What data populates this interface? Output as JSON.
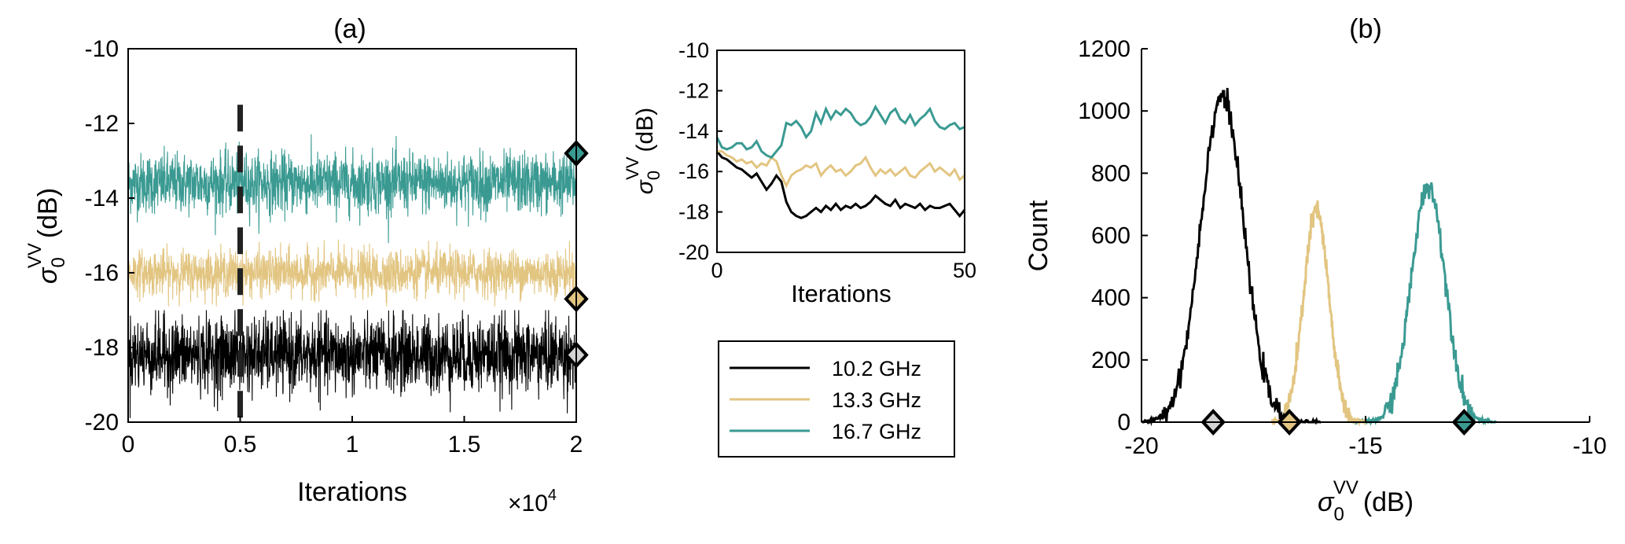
{
  "colors": {
    "f102": "#000000",
    "f133": "#E2C581",
    "f167": "#3A9A92",
    "marker102": "#D3D3D3",
    "axis": "#000000"
  },
  "chart_data": [
    {
      "panel": "(a)",
      "type": "line",
      "title": "(a)",
      "xlabel": "Iterations",
      "x_exponent_label": "×10",
      "x_exponent_power": "4",
      "ylabel": "σ₀ᵛᵛ (dB)",
      "xlim": [
        0,
        20000
      ],
      "ylim": [
        -20,
        -10
      ],
      "xticks": [
        0,
        5000,
        10000,
        15000,
        20000
      ],
      "xtick_labels": [
        "0",
        "0.5",
        "1",
        "1.5",
        "2"
      ],
      "yticks": [
        -10,
        -12,
        -14,
        -16,
        -18,
        -20
      ],
      "ytick_labels": [
        "-10",
        "-12",
        "-14",
        "-16",
        "-18",
        "-20"
      ],
      "vline_x": 5000,
      "vline_style": "dashed",
      "series": [
        {
          "name": "10.2 GHz",
          "mean": -18.2,
          "spread": 0.5,
          "min": -19.9,
          "max": -17.0,
          "color_key": "f102",
          "marker_value": -18.2
        },
        {
          "name": "13.3 GHz",
          "mean": -16.0,
          "spread": 0.3,
          "min": -16.9,
          "max": -15.1,
          "color_key": "f133",
          "marker_value": -16.7
        },
        {
          "name": "16.7 GHz",
          "mean": -13.6,
          "spread": 0.4,
          "min": -15.4,
          "max": -12.2,
          "color_key": "f167",
          "marker_value": -12.8
        }
      ]
    },
    {
      "panel": "inset",
      "type": "line",
      "xlabel": "Iterations",
      "ylabel": "σ₀ᵛᵛ (dB)",
      "xlim": [
        0,
        50
      ],
      "ylim": [
        -20,
        -10
      ],
      "xticks": [
        0,
        50
      ],
      "xtick_labels": [
        "0",
        "50"
      ],
      "yticks": [
        -10,
        -12,
        -14,
        -16,
        -18,
        -20
      ],
      "ytick_labels": [
        "-10",
        "-12",
        "-14",
        "-16",
        "-18",
        "-20"
      ],
      "x": [
        0,
        1,
        2,
        3,
        4,
        5,
        6,
        7,
        8,
        9,
        10,
        11,
        12,
        13,
        14,
        15,
        16,
        17,
        18,
        19,
        20,
        21,
        22,
        23,
        24,
        25,
        26,
        27,
        28,
        29,
        30,
        31,
        32,
        33,
        34,
        35,
        36,
        37,
        38,
        39,
        40,
        41,
        42,
        43,
        44,
        45,
        46,
        47,
        48,
        49,
        50
      ],
      "series": [
        {
          "name": "10.2 GHz",
          "color_key": "f102",
          "values": [
            -15.0,
            -15.3,
            -15.4,
            -15.6,
            -15.8,
            -15.9,
            -16.1,
            -16.3,
            -16.1,
            -16.5,
            -16.9,
            -16.6,
            -16.2,
            -16.5,
            -17.5,
            -18.0,
            -18.2,
            -18.3,
            -18.2,
            -18.0,
            -17.8,
            -18.0,
            -17.7,
            -17.9,
            -17.6,
            -17.9,
            -17.7,
            -17.8,
            -17.6,
            -17.8,
            -17.7,
            -17.5,
            -17.2,
            -17.4,
            -17.6,
            -17.7,
            -17.4,
            -17.8,
            -17.6,
            -17.7,
            -17.8,
            -17.6,
            -17.9,
            -17.7,
            -17.8,
            -17.8,
            -17.7,
            -17.6,
            -17.9,
            -18.2,
            -17.9
          ]
        },
        {
          "name": "13.3 GHz",
          "color_key": "f133",
          "values": [
            -15.0,
            -15.0,
            -15.2,
            -15.3,
            -15.5,
            -15.4,
            -15.6,
            -15.5,
            -15.8,
            -15.6,
            -15.7,
            -15.3,
            -15.5,
            -16.2,
            -16.7,
            -16.2,
            -16.0,
            -15.9,
            -15.7,
            -15.8,
            -15.6,
            -16.2,
            -15.9,
            -15.7,
            -16.0,
            -15.9,
            -16.2,
            -16.0,
            -15.7,
            -15.6,
            -15.3,
            -15.8,
            -16.2,
            -15.9,
            -16.1,
            -15.9,
            -16.2,
            -16.0,
            -15.8,
            -16.2,
            -16.3,
            -16.0,
            -15.8,
            -15.6,
            -16.0,
            -15.8,
            -16.0,
            -16.2,
            -15.9,
            -16.4,
            -16.2
          ]
        },
        {
          "name": "16.7 GHz",
          "color_key": "f167",
          "values": [
            -14.3,
            -14.8,
            -14.9,
            -14.8,
            -14.6,
            -14.6,
            -14.9,
            -14.8,
            -14.5,
            -15.0,
            -15.2,
            -15.3,
            -15.0,
            -14.7,
            -13.6,
            -13.7,
            -13.5,
            -13.8,
            -14.3,
            -14.0,
            -13.1,
            -13.6,
            -12.9,
            -13.4,
            -13.0,
            -13.2,
            -12.9,
            -13.1,
            -13.5,
            -13.7,
            -13.6,
            -13.3,
            -12.8,
            -13.2,
            -13.6,
            -13.1,
            -12.9,
            -13.4,
            -13.6,
            -13.2,
            -13.7,
            -13.4,
            -13.2,
            -12.9,
            -13.5,
            -13.8,
            -13.9,
            -13.7,
            -13.6,
            -13.9,
            -13.8
          ]
        }
      ]
    },
    {
      "panel": "(b)",
      "type": "line",
      "title": "(b)",
      "xlabel": "σ₀ᵛᵛ (dB)",
      "ylabel": "Count",
      "xlim": [
        -20,
        -10
      ],
      "ylim": [
        0,
        1200
      ],
      "xticks": [
        -20,
        -15,
        -10
      ],
      "xtick_labels": [
        "-20",
        "-15",
        "-10"
      ],
      "yticks": [
        0,
        200,
        400,
        600,
        800,
        1000,
        1200
      ],
      "ytick_labels": [
        "0",
        "200",
        "400",
        "600",
        "800",
        "1000",
        "1200"
      ],
      "series": [
        {
          "name": "10.2 GHz",
          "color_key": "f102",
          "peak_x": -18.2,
          "peak_count": 1050,
          "sigma": 0.48,
          "range": [
            -20.0,
            -16.0
          ],
          "marker_x": -18.4
        },
        {
          "name": "13.3 GHz",
          "color_key": "f133",
          "peak_x": -16.1,
          "peak_count": 680,
          "sigma": 0.28,
          "range": [
            -17.1,
            -15.0
          ],
          "marker_x": -16.7
        },
        {
          "name": "16.7 GHz",
          "color_key": "f167",
          "peak_x": -13.6,
          "peak_count": 760,
          "sigma": 0.38,
          "range": [
            -15.3,
            -12.1
          ],
          "marker_x": -12.8
        }
      ]
    }
  ],
  "legend": {
    "entries": [
      "10.2 GHz",
      "13.3 GHz",
      "16.7 GHz"
    ],
    "color_keys": [
      "f102",
      "f133",
      "f167"
    ]
  },
  "labels": {
    "sigma": "σ",
    "sigma_sub": "0",
    "sigma_sup": "VV",
    "db_unit": "(dB)"
  }
}
